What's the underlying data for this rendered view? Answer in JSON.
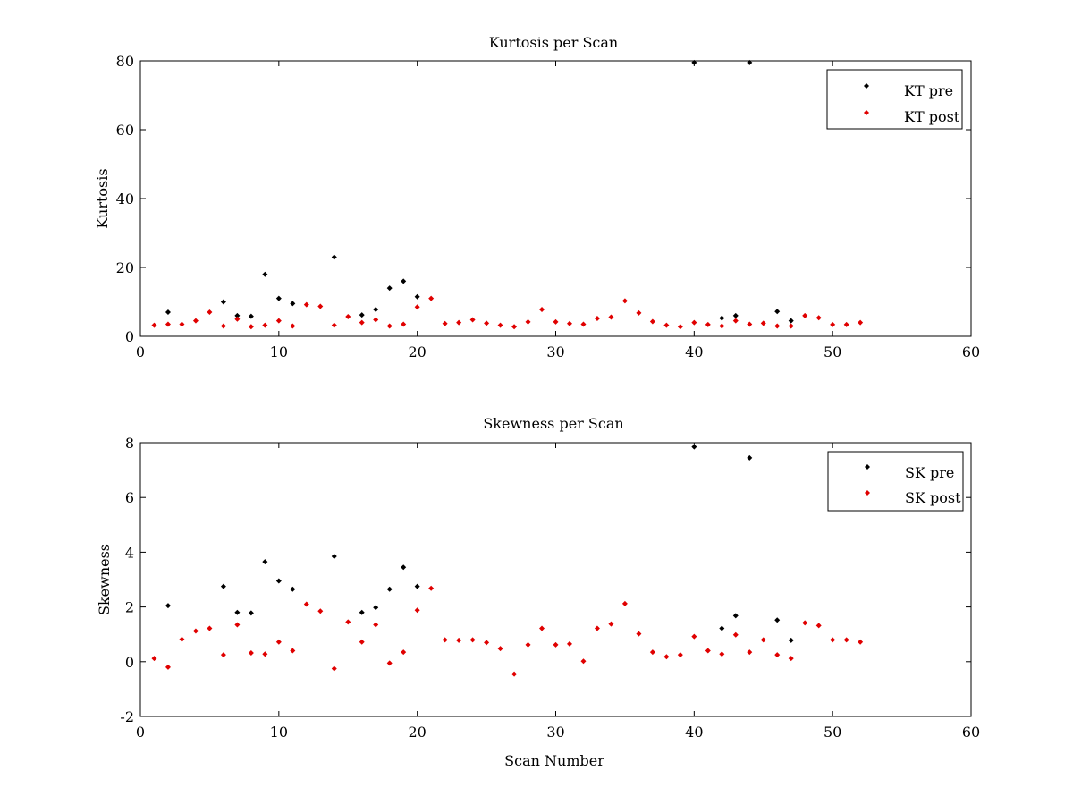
{
  "chart_data": [
    {
      "type": "scatter",
      "title": "Kurtosis per Scan",
      "xlabel": "",
      "ylabel": "Kurtosis",
      "xlim": [
        0,
        60
      ],
      "ylim": [
        0,
        80
      ],
      "xticks": [
        0,
        10,
        20,
        30,
        40,
        50,
        60
      ],
      "yticks": [
        0,
        20,
        40,
        60,
        80
      ],
      "grid": false,
      "legend_position": "top-right",
      "series": [
        {
          "name": "KT pre",
          "color": "#000000",
          "marker": "diamond",
          "points": [
            [
              2,
              7
            ],
            [
              6,
              10
            ],
            [
              7,
              6
            ],
            [
              8,
              5.8
            ],
            [
              9,
              18
            ],
            [
              10,
              11
            ],
            [
              11,
              9.5
            ],
            [
              14,
              23
            ],
            [
              16,
              6.2
            ],
            [
              17,
              7.8
            ],
            [
              18,
              14
            ],
            [
              19,
              16
            ],
            [
              20,
              11.5
            ],
            [
              40,
              79.5
            ],
            [
              42,
              5.3
            ],
            [
              43,
              6
            ],
            [
              44,
              79.5
            ],
            [
              46,
              7.2
            ],
            [
              47,
              4.5
            ]
          ]
        },
        {
          "name": "KT post",
          "color": "#e00000",
          "marker": "diamond",
          "points": [
            [
              1,
              3.2
            ],
            [
              2,
              3.5
            ],
            [
              3,
              3.5
            ],
            [
              4,
              4.5
            ],
            [
              5,
              7
            ],
            [
              6,
              3
            ],
            [
              7,
              5
            ],
            [
              8,
              2.8
            ],
            [
              9,
              3.2
            ],
            [
              10,
              4.5
            ],
            [
              11,
              3
            ],
            [
              12,
              9.2
            ],
            [
              13,
              8.7
            ],
            [
              14,
              3.2
            ],
            [
              15,
              5.7
            ],
            [
              16,
              4
            ],
            [
              17,
              4.8
            ],
            [
              18,
              3
            ],
            [
              19,
              3.5
            ],
            [
              20,
              8.5
            ],
            [
              21,
              11
            ],
            [
              22,
              3.7
            ],
            [
              23,
              4
            ],
            [
              24,
              4.8
            ],
            [
              25,
              3.8
            ],
            [
              26,
              3.2
            ],
            [
              27,
              2.8
            ],
            [
              28,
              4.2
            ],
            [
              29,
              7.8
            ],
            [
              30,
              4.2
            ],
            [
              31,
              3.7
            ],
            [
              32,
              3.5
            ],
            [
              33,
              5.2
            ],
            [
              34,
              5.6
            ],
            [
              35,
              10.3
            ],
            [
              36,
              6.8
            ],
            [
              37,
              4.3
            ],
            [
              38,
              3.2
            ],
            [
              39,
              2.8
            ],
            [
              40,
              4
            ],
            [
              41,
              3.4
            ],
            [
              42,
              3
            ],
            [
              43,
              4.5
            ],
            [
              44,
              3.5
            ],
            [
              45,
              3.8
            ],
            [
              46,
              3
            ],
            [
              47,
              3
            ],
            [
              48,
              6
            ],
            [
              49,
              5.4
            ],
            [
              50,
              3.4
            ],
            [
              51,
              3.4
            ],
            [
              52,
              4
            ]
          ]
        }
      ]
    },
    {
      "type": "scatter",
      "title": "Skewness per Scan",
      "xlabel": "Scan Number",
      "ylabel": "Skewness",
      "xlim": [
        0,
        60
      ],
      "ylim": [
        -2,
        8
      ],
      "xticks": [
        0,
        10,
        20,
        30,
        40,
        50,
        60
      ],
      "yticks": [
        -2,
        0,
        2,
        4,
        6,
        8
      ],
      "grid": false,
      "legend_position": "top-right",
      "series": [
        {
          "name": "SK pre",
          "color": "#000000",
          "marker": "diamond",
          "points": [
            [
              2,
              2.05
            ],
            [
              6,
              2.75
            ],
            [
              7,
              1.8
            ],
            [
              8,
              1.78
            ],
            [
              9,
              3.65
            ],
            [
              10,
              2.95
            ],
            [
              11,
              2.65
            ],
            [
              14,
              3.85
            ],
            [
              16,
              1.8
            ],
            [
              17,
              1.98
            ],
            [
              18,
              2.65
            ],
            [
              19,
              3.45
            ],
            [
              20,
              2.75
            ],
            [
              40,
              7.85
            ],
            [
              42,
              1.22
            ],
            [
              43,
              1.68
            ],
            [
              44,
              7.45
            ],
            [
              46,
              1.52
            ],
            [
              47,
              0.78
            ]
          ]
        },
        {
          "name": "SK post",
          "color": "#e00000",
          "marker": "diamond",
          "points": [
            [
              1,
              0.12
            ],
            [
              2,
              -0.2
            ],
            [
              3,
              0.82
            ],
            [
              4,
              1.12
            ],
            [
              5,
              1.22
            ],
            [
              6,
              0.25
            ],
            [
              7,
              1.35
            ],
            [
              8,
              0.32
            ],
            [
              9,
              0.28
            ],
            [
              10,
              0.72
            ],
            [
              11,
              0.4
            ],
            [
              12,
              2.1
            ],
            [
              13,
              1.85
            ],
            [
              14,
              -0.25
            ],
            [
              15,
              1.45
            ],
            [
              16,
              0.72
            ],
            [
              17,
              1.35
            ],
            [
              18,
              -0.05
            ],
            [
              19,
              0.35
            ],
            [
              20,
              1.88
            ],
            [
              21,
              2.68
            ],
            [
              22,
              0.8
            ],
            [
              23,
              0.78
            ],
            [
              24,
              0.8
            ],
            [
              25,
              0.7
            ],
            [
              26,
              0.48
            ],
            [
              27,
              -0.45
            ],
            [
              28,
              0.62
            ],
            [
              29,
              1.22
            ],
            [
              30,
              0.62
            ],
            [
              31,
              0.65
            ],
            [
              32,
              0.02
            ],
            [
              33,
              1.22
            ],
            [
              34,
              1.38
            ],
            [
              35,
              2.12
            ],
            [
              36,
              1.02
            ],
            [
              37,
              0.35
            ],
            [
              38,
              0.18
            ],
            [
              39,
              0.25
            ],
            [
              40,
              0.92
            ],
            [
              41,
              0.4
            ],
            [
              42,
              0.28
            ],
            [
              43,
              0.98
            ],
            [
              44,
              0.35
            ],
            [
              45,
              0.8
            ],
            [
              46,
              0.25
            ],
            [
              47,
              0.12
            ],
            [
              48,
              1.42
            ],
            [
              49,
              1.32
            ],
            [
              50,
              0.8
            ],
            [
              51,
              0.8
            ],
            [
              52,
              0.72
            ]
          ]
        }
      ]
    }
  ]
}
